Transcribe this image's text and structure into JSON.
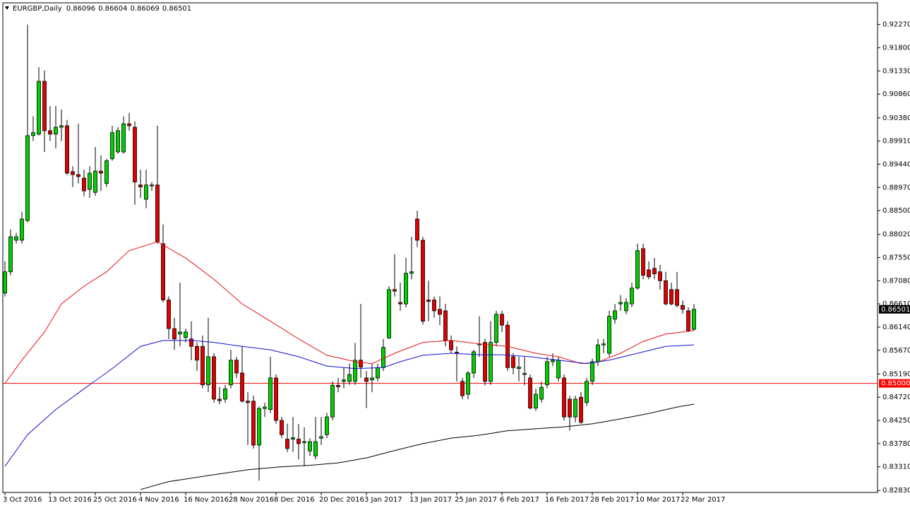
{
  "chart_data": {
    "type": "candlestick",
    "title": "EURGBP,Daily",
    "up_color": "#00d000",
    "down_color": "#e00000",
    "categories": [
      "3 Oct 2016",
      null,
      null,
      null,
      null,
      null,
      null,
      null,
      "13 Oct 2016",
      null,
      null,
      null,
      null,
      null,
      null,
      null,
      "25 Oct 2016",
      null,
      null,
      null,
      null,
      null,
      null,
      null,
      "4 Nov 2016",
      null,
      null,
      null,
      null,
      null,
      null,
      null,
      "16 Nov 2016",
      null,
      null,
      null,
      null,
      null,
      null,
      null,
      "28 Nov 2016",
      null,
      null,
      null,
      null,
      null,
      null,
      null,
      "8 Dec 2016",
      null,
      null,
      null,
      null,
      null,
      null,
      null,
      "20 Dec 2016",
      null,
      null,
      null,
      null,
      null,
      null,
      null,
      "3 Jan 2017",
      null,
      null,
      null,
      null,
      null,
      null,
      null,
      "13 Jan 2017",
      null,
      null,
      null,
      null,
      null,
      null,
      null,
      "25 Jan 2017",
      null,
      null,
      null,
      null,
      null,
      null,
      null,
      "6 Feb 2017",
      null,
      null,
      null,
      null,
      null,
      null,
      null,
      "16 Feb 2017",
      null,
      null,
      null,
      null,
      null,
      null,
      null,
      "28 Feb 2017",
      null,
      null,
      null,
      null,
      null,
      null,
      null,
      "10 Mar 2017",
      null,
      null,
      null,
      null,
      null,
      null,
      null,
      "22 Mar 2017",
      null,
      null
    ],
    "ohlc": [
      [
        0.8683,
        0.8747,
        0.8676,
        0.8726
      ],
      [
        0.8726,
        0.8812,
        0.8719,
        0.8797
      ],
      [
        0.879,
        0.8805,
        0.8783,
        0.8797
      ],
      [
        0.879,
        0.8848,
        0.8783,
        0.8833
      ],
      [
        0.883,
        0.9227,
        0.8826,
        0.9002
      ],
      [
        0.9002,
        0.9041,
        0.8991,
        0.9008
      ],
      [
        0.9005,
        0.9141,
        0.9002,
        0.9112
      ],
      [
        0.9112,
        0.9134,
        0.8969,
        0.9012
      ],
      [
        0.9012,
        0.9062,
        0.8991,
        0.9005
      ],
      [
        0.9005,
        0.9062,
        0.8976,
        0.9019
      ],
      [
        0.9019,
        0.9055,
        0.8991,
        0.9022
      ],
      [
        0.9022,
        0.9034,
        0.8922,
        0.8926
      ],
      [
        0.8929,
        0.894,
        0.8898,
        0.8923
      ],
      [
        0.8923,
        0.9026,
        0.8905,
        0.8919
      ],
      [
        0.8916,
        0.8933,
        0.8879,
        0.889
      ],
      [
        0.8893,
        0.894,
        0.8876,
        0.8926
      ],
      [
        0.8887,
        0.8979,
        0.888,
        0.893
      ],
      [
        0.893,
        0.8962,
        0.889,
        0.8926
      ],
      [
        0.8905,
        0.8955,
        0.8898,
        0.8951
      ],
      [
        0.8955,
        0.9022,
        0.8951,
        0.9008
      ],
      [
        0.8969,
        0.9019,
        0.8965,
        0.9012
      ],
      [
        0.8969,
        0.9041,
        0.8965,
        0.9026
      ],
      [
        0.9026,
        0.9048,
        0.9012,
        0.9022
      ],
      [
        0.9019,
        0.9031,
        0.8862,
        0.8908
      ],
      [
        0.8902,
        0.8933,
        0.8876,
        0.8898
      ],
      [
        0.8873,
        0.8933,
        0.8855,
        0.8902
      ],
      [
        0.8902,
        0.8908,
        0.889,
        0.89
      ],
      [
        0.8902,
        0.9022,
        0.8783,
        0.8787
      ],
      [
        0.8783,
        0.8822,
        0.8664,
        0.8669
      ],
      [
        0.8669,
        0.8676,
        0.859,
        0.8611
      ],
      [
        0.8611,
        0.8633,
        0.8568,
        0.859
      ],
      [
        0.86,
        0.8704,
        0.8575,
        0.8604
      ],
      [
        0.8593,
        0.8611,
        0.8583,
        0.8604
      ],
      [
        0.859,
        0.8626,
        0.8547,
        0.8575
      ],
      [
        0.8575,
        0.8583,
        0.8525,
        0.8547
      ],
      [
        0.8575,
        0.8597,
        0.849,
        0.8497
      ],
      [
        0.8497,
        0.8633,
        0.8482,
        0.8554
      ],
      [
        0.8554,
        0.8561,
        0.8461,
        0.8468
      ],
      [
        0.8468,
        0.8493,
        0.8458,
        0.8465
      ],
      [
        0.8468,
        0.8497,
        0.8461,
        0.8489
      ],
      [
        0.8497,
        0.8568,
        0.849,
        0.8547
      ],
      [
        0.8547,
        0.8554,
        0.8511,
        0.8521
      ],
      [
        0.8521,
        0.8575,
        0.8461,
        0.8464
      ],
      [
        0.8464,
        0.8482,
        0.8375,
        0.8461
      ],
      [
        0.8464,
        0.8475,
        0.8368,
        0.8375
      ],
      [
        0.8375,
        0.8454,
        0.8303,
        0.8449
      ],
      [
        0.8449,
        0.8461,
        0.8432,
        0.8452
      ],
      [
        0.8447,
        0.8554,
        0.844,
        0.8511
      ],
      [
        0.8511,
        0.8518,
        0.8418,
        0.8425
      ],
      [
        0.8425,
        0.8432,
        0.8389,
        0.8396
      ],
      [
        0.8387,
        0.8418,
        0.8361,
        0.8368
      ],
      [
        0.8387,
        0.8432,
        0.8361,
        0.839
      ],
      [
        0.8387,
        0.8418,
        0.8346,
        0.8378
      ],
      [
        0.838,
        0.8411,
        0.8332,
        0.8382
      ],
      [
        0.8363,
        0.8389,
        0.8353,
        0.8382
      ],
      [
        0.8353,
        0.8432,
        0.8346,
        0.8382
      ],
      [
        0.8389,
        0.8432,
        0.8375,
        0.8392
      ],
      [
        0.8396,
        0.844,
        0.8389,
        0.8432
      ],
      [
        0.8432,
        0.8504,
        0.8425,
        0.8496
      ],
      [
        0.8496,
        0.8511,
        0.8482,
        0.8493
      ],
      [
        0.8504,
        0.8532,
        0.849,
        0.8507
      ],
      [
        0.8504,
        0.854,
        0.8497,
        0.8518
      ],
      [
        0.8504,
        0.8582,
        0.8497,
        0.8547
      ],
      [
        0.8547,
        0.8661,
        0.8511,
        0.8533
      ],
      [
        0.8511,
        0.8525,
        0.845,
        0.8504
      ],
      [
        0.8507,
        0.854,
        0.8482,
        0.8511
      ],
      [
        0.8511,
        0.854,
        0.8504,
        0.8532
      ],
      [
        0.8532,
        0.859,
        0.8525,
        0.8573
      ],
      [
        0.8592,
        0.8697,
        0.859,
        0.869
      ],
      [
        0.869,
        0.8762,
        0.8676,
        0.8687
      ],
      [
        0.8664,
        0.8704,
        0.8647,
        0.8661
      ],
      [
        0.8661,
        0.8754,
        0.8654,
        0.8723
      ],
      [
        0.8723,
        0.8797,
        0.8711,
        0.8726
      ],
      [
        0.8833,
        0.885,
        0.8776,
        0.879
      ],
      [
        0.879,
        0.8797,
        0.8619,
        0.8626
      ],
      [
        0.8669,
        0.8708,
        0.8626,
        0.8666
      ],
      [
        0.8669,
        0.8676,
        0.8633,
        0.8647
      ],
      [
        0.865,
        0.8676,
        0.8618,
        0.864
      ],
      [
        0.8647,
        0.8661,
        0.8575,
        0.8587
      ],
      [
        0.8587,
        0.8597,
        0.8561,
        0.8568
      ],
      [
        0.8563,
        0.8575,
        0.8504,
        0.8561
      ],
      [
        0.8504,
        0.8511,
        0.8468,
        0.8475
      ],
      [
        0.8478,
        0.8525,
        0.8468,
        0.8521
      ],
      [
        0.8521,
        0.8568,
        0.8511,
        0.8564
      ],
      [
        0.8578,
        0.8636,
        0.8554,
        0.858
      ],
      [
        0.8583,
        0.859,
        0.8496,
        0.8504
      ],
      [
        0.8504,
        0.8626,
        0.8497,
        0.8583
      ],
      [
        0.8583,
        0.8647,
        0.8575,
        0.864
      ],
      [
        0.864,
        0.8647,
        0.8604,
        0.8618
      ],
      [
        0.8618,
        0.8626,
        0.8525,
        0.8532
      ],
      [
        0.8554,
        0.8561,
        0.8518,
        0.8532
      ],
      [
        0.853,
        0.8554,
        0.8504,
        0.8533
      ],
      [
        0.8518,
        0.8554,
        0.8496,
        0.852
      ],
      [
        0.8511,
        0.8518,
        0.8447,
        0.845
      ],
      [
        0.845,
        0.8489,
        0.8444,
        0.8478
      ],
      [
        0.8468,
        0.8504,
        0.8461,
        0.8492
      ],
      [
        0.8497,
        0.8554,
        0.849,
        0.8544
      ],
      [
        0.8544,
        0.8561,
        0.8535,
        0.8547
      ],
      [
        0.8511,
        0.8554,
        0.8504,
        0.8547
      ],
      [
        0.8511,
        0.8518,
        0.8425,
        0.8432
      ],
      [
        0.8468,
        0.8475,
        0.8404,
        0.8432
      ],
      [
        0.8432,
        0.8475,
        0.8421,
        0.8468
      ],
      [
        0.8472,
        0.8482,
        0.8418,
        0.8421
      ],
      [
        0.8461,
        0.8511,
        0.8454,
        0.8504
      ],
      [
        0.8504,
        0.855,
        0.8497,
        0.8544
      ],
      [
        0.8544,
        0.859,
        0.8535,
        0.8578
      ],
      [
        0.8578,
        0.859,
        0.8561,
        0.858
      ],
      [
        0.8561,
        0.8647,
        0.8554,
        0.8636
      ],
      [
        0.863,
        0.8661,
        0.8621,
        0.8647
      ],
      [
        0.8661,
        0.8679,
        0.8647,
        0.8664
      ],
      [
        0.8647,
        0.8673,
        0.864,
        0.8664
      ],
      [
        0.8661,
        0.8704,
        0.8654,
        0.8693
      ],
      [
        0.8693,
        0.8783,
        0.869,
        0.8769
      ],
      [
        0.8773,
        0.8783,
        0.8711,
        0.8719
      ],
      [
        0.873,
        0.8747,
        0.8711,
        0.8716
      ],
      [
        0.8733,
        0.8754,
        0.8711,
        0.8722
      ],
      [
        0.8726,
        0.874,
        0.869,
        0.8708
      ],
      [
        0.8708,
        0.8726,
        0.8658,
        0.8661
      ],
      [
        0.869,
        0.8704,
        0.8658,
        0.8661
      ],
      [
        0.869,
        0.8726,
        0.8654,
        0.8658
      ],
      [
        0.8658,
        0.8668,
        0.8641,
        0.865
      ],
      [
        0.8647,
        0.8654,
        0.8604,
        0.8607
      ],
      [
        0.86096,
        0.86604,
        0.86069,
        0.86501
      ]
    ],
    "ma": [
      {
        "color": "#e81010",
        "x": [
          0,
          3,
          7,
          10,
          14,
          18,
          22,
          24,
          27,
          32,
          37,
          42,
          47,
          52,
          57,
          62,
          65,
          69,
          74,
          79,
          84,
          89,
          94,
          98,
          102,
          105,
          109,
          113,
          117,
          122
        ],
        "values": [
          0.85,
          0.8547,
          0.8604,
          0.8661,
          0.8697,
          0.8726,
          0.8769,
          0.8776,
          0.8787,
          0.8754,
          0.8711,
          0.8661,
          0.8626,
          0.859,
          0.8557,
          0.8544,
          0.854,
          0.8561,
          0.8583,
          0.8587,
          0.858,
          0.8575,
          0.8561,
          0.8554,
          0.854,
          0.8543,
          0.8561,
          0.8585,
          0.86,
          0.8607
        ]
      },
      {
        "color": "#1010d0",
        "x": [
          0,
          4,
          9,
          14,
          19,
          24,
          28,
          33,
          37,
          42,
          47,
          52,
          57,
          62,
          67,
          70,
          74,
          79,
          84,
          88,
          93,
          98,
          103,
          107,
          112,
          117,
          122
        ],
        "values": [
          0.8332,
          0.8396,
          0.8447,
          0.8489,
          0.853,
          0.8575,
          0.8587,
          0.8587,
          0.8583,
          0.8575,
          0.8568,
          0.8554,
          0.8535,
          0.853,
          0.8532,
          0.8544,
          0.8557,
          0.8561,
          0.8558,
          0.8558,
          0.8554,
          0.8547,
          0.854,
          0.8547,
          0.8561,
          0.8575,
          0.8578
        ]
      },
      {
        "color": "#000000",
        "x": [
          24,
          29,
          37,
          43,
          49,
          54,
          59,
          64,
          69,
          74,
          79,
          84,
          89,
          94,
          99,
          104,
          109,
          114,
          119,
          122
        ],
        "values": [
          0.8285,
          0.8301,
          0.8315,
          0.8325,
          0.8331,
          0.8334,
          0.8339,
          0.8349,
          0.8364,
          0.8378,
          0.8389,
          0.8395,
          0.8404,
          0.8408,
          0.8412,
          0.8418,
          0.8428,
          0.8439,
          0.8452,
          0.8458
        ]
      }
    ],
    "hline": {
      "value": 0.85,
      "label": "0.85000",
      "color": "#ff0000"
    },
    "ylim": [
      0.8279,
      0.9271
    ],
    "yticks": [
      {
        "value": 0.9227,
        "label": "0.92270"
      },
      {
        "value": 0.918,
        "label": "0.91800"
      },
      {
        "value": 0.9133,
        "label": "0.91330"
      },
      {
        "value": 0.9086,
        "label": "0.90860"
      },
      {
        "value": 0.9038,
        "label": "0.90380"
      },
      {
        "value": 0.8991,
        "label": "0.89910"
      },
      {
        "value": 0.8944,
        "label": "0.89440"
      },
      {
        "value": 0.8897,
        "label": "0.88970"
      },
      {
        "value": 0.885,
        "label": "0.88500"
      },
      {
        "value": 0.8802,
        "label": "0.88020"
      },
      {
        "value": 0.8755,
        "label": "0.87550"
      },
      {
        "value": 0.8708,
        "label": "0.87080"
      },
      {
        "value": 0.8661,
        "label": "0.86610"
      },
      {
        "value": 0.8614,
        "label": "0.86140"
      },
      {
        "value": 0.8567,
        "label": "0.85670"
      },
      {
        "value": 0.8519,
        "label": "0.85190"
      },
      {
        "value": 0.8472,
        "label": "0.84720"
      },
      {
        "value": 0.8425,
        "label": "0.84250"
      },
      {
        "value": 0.8378,
        "label": "0.83780"
      },
      {
        "value": 0.8331,
        "label": "0.83310"
      },
      {
        "value": 0.8283,
        "label": "0.82830"
      }
    ]
  }
}
